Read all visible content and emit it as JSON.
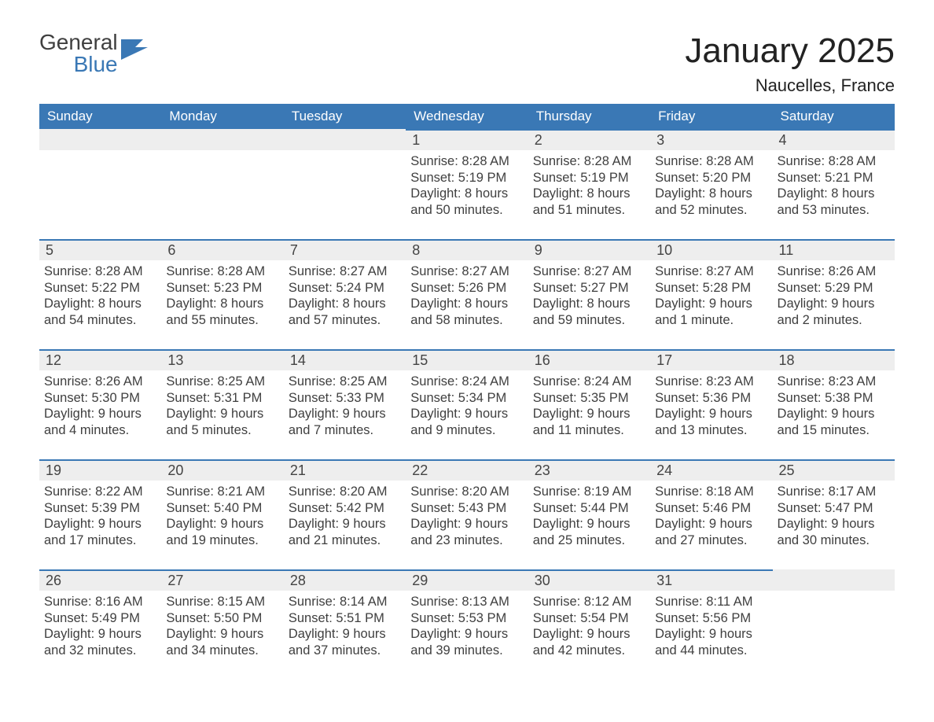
{
  "brand": {
    "line1": "General",
    "line2": "Blue",
    "accent_color": "#3a78b5",
    "text_color": "#3f3f3f"
  },
  "title": "January 2025",
  "location": "Naucelles, France",
  "colors": {
    "header_bg": "#3a78b5",
    "header_text": "#ffffff",
    "daynum_bg": "#eeeeee",
    "daynum_border": "#3a78b5",
    "body_text": "#3f3f3f",
    "page_bg": "#ffffff"
  },
  "weekdays": [
    "Sunday",
    "Monday",
    "Tuesday",
    "Wednesday",
    "Thursday",
    "Friday",
    "Saturday"
  ],
  "weeks": [
    [
      null,
      null,
      null,
      {
        "n": "1",
        "sunrise": "8:28 AM",
        "sunset": "5:19 PM",
        "daylight": "8 hours and 50 minutes."
      },
      {
        "n": "2",
        "sunrise": "8:28 AM",
        "sunset": "5:19 PM",
        "daylight": "8 hours and 51 minutes."
      },
      {
        "n": "3",
        "sunrise": "8:28 AM",
        "sunset": "5:20 PM",
        "daylight": "8 hours and 52 minutes."
      },
      {
        "n": "4",
        "sunrise": "8:28 AM",
        "sunset": "5:21 PM",
        "daylight": "8 hours and 53 minutes."
      }
    ],
    [
      {
        "n": "5",
        "sunrise": "8:28 AM",
        "sunset": "5:22 PM",
        "daylight": "8 hours and 54 minutes."
      },
      {
        "n": "6",
        "sunrise": "8:28 AM",
        "sunset": "5:23 PM",
        "daylight": "8 hours and 55 minutes."
      },
      {
        "n": "7",
        "sunrise": "8:27 AM",
        "sunset": "5:24 PM",
        "daylight": "8 hours and 57 minutes."
      },
      {
        "n": "8",
        "sunrise": "8:27 AM",
        "sunset": "5:26 PM",
        "daylight": "8 hours and 58 minutes."
      },
      {
        "n": "9",
        "sunrise": "8:27 AM",
        "sunset": "5:27 PM",
        "daylight": "8 hours and 59 minutes."
      },
      {
        "n": "10",
        "sunrise": "8:27 AM",
        "sunset": "5:28 PM",
        "daylight": "9 hours and 1 minute."
      },
      {
        "n": "11",
        "sunrise": "8:26 AM",
        "sunset": "5:29 PM",
        "daylight": "9 hours and 2 minutes."
      }
    ],
    [
      {
        "n": "12",
        "sunrise": "8:26 AM",
        "sunset": "5:30 PM",
        "daylight": "9 hours and 4 minutes."
      },
      {
        "n": "13",
        "sunrise": "8:25 AM",
        "sunset": "5:31 PM",
        "daylight": "9 hours and 5 minutes."
      },
      {
        "n": "14",
        "sunrise": "8:25 AM",
        "sunset": "5:33 PM",
        "daylight": "9 hours and 7 minutes."
      },
      {
        "n": "15",
        "sunrise": "8:24 AM",
        "sunset": "5:34 PM",
        "daylight": "9 hours and 9 minutes."
      },
      {
        "n": "16",
        "sunrise": "8:24 AM",
        "sunset": "5:35 PM",
        "daylight": "9 hours and 11 minutes."
      },
      {
        "n": "17",
        "sunrise": "8:23 AM",
        "sunset": "5:36 PM",
        "daylight": "9 hours and 13 minutes."
      },
      {
        "n": "18",
        "sunrise": "8:23 AM",
        "sunset": "5:38 PM",
        "daylight": "9 hours and 15 minutes."
      }
    ],
    [
      {
        "n": "19",
        "sunrise": "8:22 AM",
        "sunset": "5:39 PM",
        "daylight": "9 hours and 17 minutes."
      },
      {
        "n": "20",
        "sunrise": "8:21 AM",
        "sunset": "5:40 PM",
        "daylight": "9 hours and 19 minutes."
      },
      {
        "n": "21",
        "sunrise": "8:20 AM",
        "sunset": "5:42 PM",
        "daylight": "9 hours and 21 minutes."
      },
      {
        "n": "22",
        "sunrise": "8:20 AM",
        "sunset": "5:43 PM",
        "daylight": "9 hours and 23 minutes."
      },
      {
        "n": "23",
        "sunrise": "8:19 AM",
        "sunset": "5:44 PM",
        "daylight": "9 hours and 25 minutes."
      },
      {
        "n": "24",
        "sunrise": "8:18 AM",
        "sunset": "5:46 PM",
        "daylight": "9 hours and 27 minutes."
      },
      {
        "n": "25",
        "sunrise": "8:17 AM",
        "sunset": "5:47 PM",
        "daylight": "9 hours and 30 minutes."
      }
    ],
    [
      {
        "n": "26",
        "sunrise": "8:16 AM",
        "sunset": "5:49 PM",
        "daylight": "9 hours and 32 minutes."
      },
      {
        "n": "27",
        "sunrise": "8:15 AM",
        "sunset": "5:50 PM",
        "daylight": "9 hours and 34 minutes."
      },
      {
        "n": "28",
        "sunrise": "8:14 AM",
        "sunset": "5:51 PM",
        "daylight": "9 hours and 37 minutes."
      },
      {
        "n": "29",
        "sunrise": "8:13 AM",
        "sunset": "5:53 PM",
        "daylight": "9 hours and 39 minutes."
      },
      {
        "n": "30",
        "sunrise": "8:12 AM",
        "sunset": "5:54 PM",
        "daylight": "9 hours and 42 minutes."
      },
      {
        "n": "31",
        "sunrise": "8:11 AM",
        "sunset": "5:56 PM",
        "daylight": "9 hours and 44 minutes."
      },
      null
    ]
  ],
  "labels": {
    "sunrise": "Sunrise: ",
    "sunset": "Sunset: ",
    "daylight": "Daylight: "
  }
}
